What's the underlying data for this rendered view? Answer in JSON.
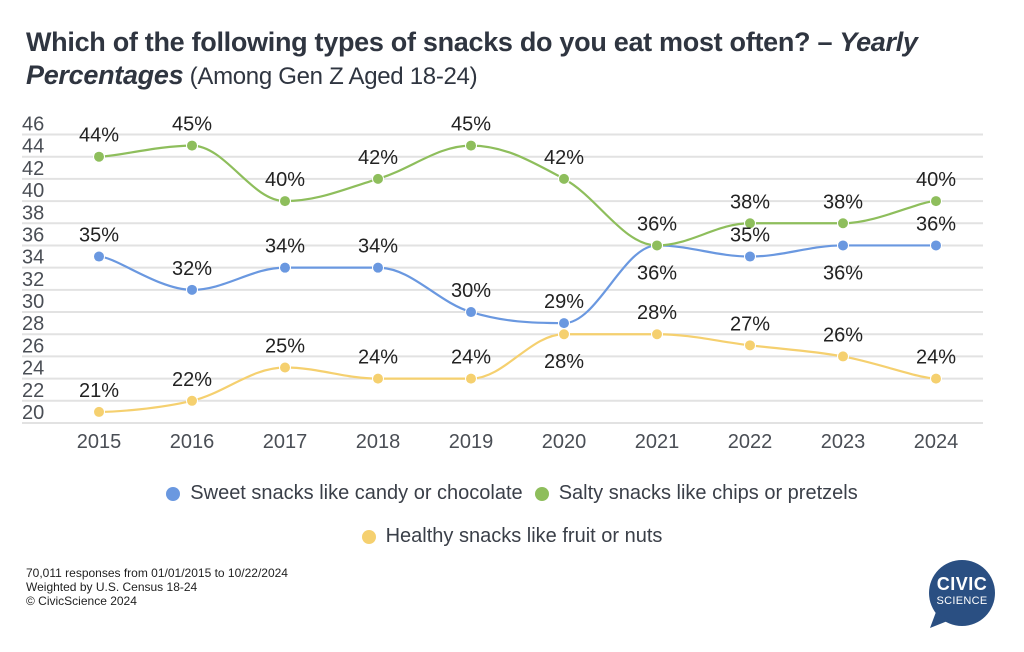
{
  "title": {
    "main": "Which of the following types of snacks do you eat most often? – ",
    "italic": "Yearly Percentages",
    "subtitle": " (Among Gen Z Aged 18-24)"
  },
  "chart_data": {
    "type": "line",
    "title": "Which of the following types of snacks do you eat most often? – Yearly Percentages (Among Gen Z Aged 18-24)",
    "xlabel": "",
    "ylabel": "",
    "x": [
      "2015",
      "2016",
      "2017",
      "2018",
      "2019",
      "2020",
      "2021",
      "2022",
      "2023",
      "2024"
    ],
    "yticks": [
      20,
      22,
      24,
      26,
      28,
      30,
      32,
      34,
      36,
      38,
      40,
      42,
      44,
      46
    ],
    "ylim": [
      20,
      46
    ],
    "grid": true,
    "smooth": true,
    "legend_position": "bottom",
    "series": [
      {
        "name": "Sweet snacks like candy or chocolate",
        "color": "#6a98e0",
        "values": [
          35,
          32,
          34,
          34,
          30,
          29,
          36,
          35,
          36,
          36
        ],
        "labels": [
          "35%",
          "32%",
          "34%",
          "34%",
          "30%",
          "29%",
          "36%",
          "35%",
          "36%",
          "36%"
        ],
        "label_side": [
          "above",
          "above",
          "above",
          "above",
          "above",
          "above",
          "below",
          "above",
          "below",
          "above"
        ]
      },
      {
        "name": "Salty snacks like chips or pretzels",
        "color": "#8ebe5c",
        "values": [
          44,
          45,
          40,
          42,
          45,
          42,
          36,
          38,
          38,
          40
        ],
        "labels": [
          "44%",
          "45%",
          "40%",
          "42%",
          "45%",
          "42%",
          "36%",
          "38%",
          "38%",
          "40%"
        ],
        "label_side": [
          "above",
          "above",
          "above",
          "above",
          "above",
          "above",
          "above",
          "above",
          "above",
          "above"
        ]
      },
      {
        "name": "Healthy snacks like fruit or nuts",
        "color": "#f5d06f",
        "values": [
          21,
          22,
          25,
          24,
          24,
          28,
          28,
          27,
          26,
          24
        ],
        "labels": [
          "21%",
          "22%",
          "25%",
          "24%",
          "24%",
          "28%",
          "28%",
          "27%",
          "26%",
          "24%"
        ],
        "label_side": [
          "above",
          "above",
          "above",
          "above",
          "above",
          "below",
          "above",
          "above",
          "above",
          "above"
        ]
      }
    ]
  },
  "legend": {
    "row1": [
      {
        "label": "Sweet snacks like candy or chocolate",
        "color": "#6a98e0"
      },
      {
        "label": "Salty snacks like chips or pretzels",
        "color": "#8ebe5c"
      }
    ],
    "row2": [
      {
        "label": "Healthy snacks like fruit or nuts",
        "color": "#f5d06f"
      }
    ]
  },
  "footer": {
    "line1": "70,011 responses from 01/01/2015 to 10/22/2024",
    "line2": "Weighted by U.S. Census 18-24",
    "line3": "© CivicScience 2024"
  },
  "logo": {
    "line1": "CIVIC",
    "line2": "SCIENCE",
    "color": "#2a4f82"
  }
}
